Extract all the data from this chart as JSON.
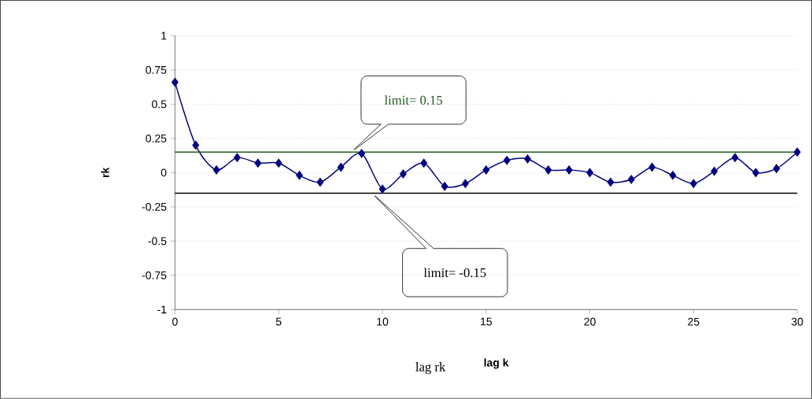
{
  "chart_data": {
    "type": "line",
    "xlabel": "lag k",
    "ylabel": "rk",
    "x": [
      0,
      1,
      2,
      3,
      4,
      5,
      6,
      7,
      8,
      9,
      10,
      11,
      12,
      13,
      14,
      15,
      16,
      17,
      18,
      19,
      20,
      21,
      22,
      23,
      24,
      25,
      26,
      27,
      28,
      29,
      30
    ],
    "series": [
      {
        "color": "#000080",
        "values": [
          0.66,
          0.2,
          0.02,
          0.11,
          0.07,
          0.07,
          -0.02,
          -0.07,
          0.04,
          0.14,
          -0.12,
          -0.01,
          0.07,
          -0.1,
          -0.08,
          0.02,
          0.09,
          0.1,
          0.02,
          0.02,
          0.0,
          -0.07,
          -0.05,
          0.04,
          -0.02,
          -0.08,
          0.01,
          0.11,
          0.0,
          0.03,
          0.15
        ]
      }
    ],
    "marker": "diamond",
    "line_style": "solid",
    "xlim": [
      0,
      30
    ],
    "ylim": [
      -1,
      1
    ],
    "xticks": [
      0,
      5,
      10,
      15,
      20,
      25,
      30
    ],
    "yticks": [
      -1,
      -0.75,
      -0.5,
      -0.25,
      0,
      0.25,
      0.5,
      0.75,
      1
    ],
    "grid": "y",
    "ref_lines": [
      {
        "axis": "y",
        "value": 0.15,
        "label": "limit= 0.15",
        "color": "#1e5a1e"
      },
      {
        "axis": "y",
        "value": -0.15,
        "label": "limit= -0.15",
        "color": "#000000"
      }
    ],
    "annotations": [
      "lag rk"
    ]
  }
}
